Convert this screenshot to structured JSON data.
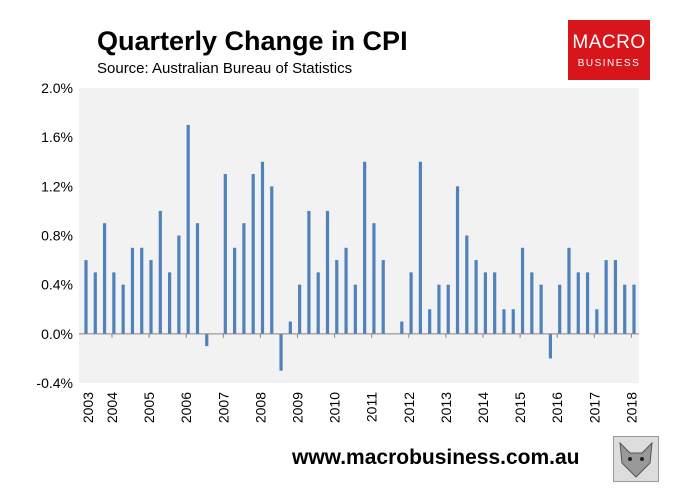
{
  "chart_data": {
    "type": "bar",
    "title": "Quarterly Change in CPI",
    "subtitle": "Source: Australian Bureau of Statistics",
    "values": [
      0.6,
      0.5,
      0.9,
      0.5,
      0.4,
      0.7,
      0.7,
      0.6,
      1.0,
      0.5,
      0.8,
      1.7,
      0.9,
      -0.1,
      0.0,
      1.3,
      0.7,
      0.9,
      1.3,
      1.4,
      1.2,
      -0.3,
      0.1,
      0.4,
      1.0,
      0.5,
      1.0,
      0.6,
      0.7,
      0.4,
      1.4,
      0.9,
      0.6,
      0.0,
      0.1,
      0.5,
      1.4,
      0.2,
      0.4,
      0.4,
      1.2,
      0.8,
      0.6,
      0.5,
      0.5,
      0.2,
      0.2,
      0.7,
      0.5,
      0.4,
      -0.2,
      0.4,
      0.7,
      0.5,
      0.5,
      0.2,
      0.6,
      0.6,
      0.4,
      0.4
    ],
    "x_tick_labels": [
      "2003",
      "2004",
      "2005",
      "2006",
      "2007",
      "2008",
      "2009",
      "2010",
      "2011",
      "2012",
      "2013",
      "2014",
      "2015",
      "2016",
      "2017",
      "2018"
    ],
    "y_tick_labels": [
      "2.0%",
      "1.6%",
      "1.2%",
      "0.8%",
      "0.4%",
      "0.0%",
      "-0.4%"
    ],
    "y_ticks": [
      2.0,
      1.6,
      1.2,
      0.8,
      0.4,
      0.0,
      -0.4
    ],
    "ylim": [
      -0.4,
      2.0
    ],
    "grid": false,
    "bar_color": "#4f81bd",
    "plot_background": "#f2f2f2"
  },
  "branding": {
    "logo_line1": "MACRO",
    "logo_line2": "BUSINESS",
    "logo_color": "#d7151b",
    "url": "www.macrobusiness.com.au"
  }
}
